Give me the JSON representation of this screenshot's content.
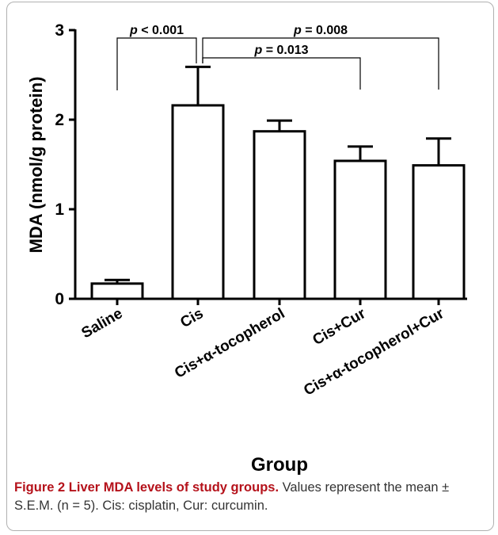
{
  "chart_data": {
    "type": "bar",
    "categories": [
      "Saline",
      "Cis",
      "Cis+α-tocopherol",
      "Cis+Cur",
      "Cis+α-tocopherol+Cur"
    ],
    "values": [
      0.17,
      2.16,
      1.87,
      1.54,
      1.49
    ],
    "errors": [
      0.04,
      0.43,
      0.12,
      0.16,
      0.3
    ],
    "xlabel": "Group",
    "ylabel": "MDA (nmol/g protein)",
    "ylim": [
      0,
      3
    ],
    "yticks": [
      "0",
      "1",
      "2",
      "3"
    ],
    "grid": false,
    "fill": "#ffffff",
    "stroke": "#000000",
    "comparisons": [
      {
        "from": 0,
        "to": 1,
        "label_p": "p",
        "label_rest": " < 0.001"
      },
      {
        "from": 1,
        "to": 3,
        "label_p": "p",
        "label_rest": " = 0.013"
      },
      {
        "from": 1,
        "to": 4,
        "label_p": "p",
        "label_rest": " = 0.008"
      }
    ]
  },
  "caption": {
    "label": "Figure 2",
    "title": "Liver MDA levels of study groups.",
    "text": "Values represent the mean ± S.E.M. (n = 5). Cis: cisplatin, Cur: curcumin."
  }
}
